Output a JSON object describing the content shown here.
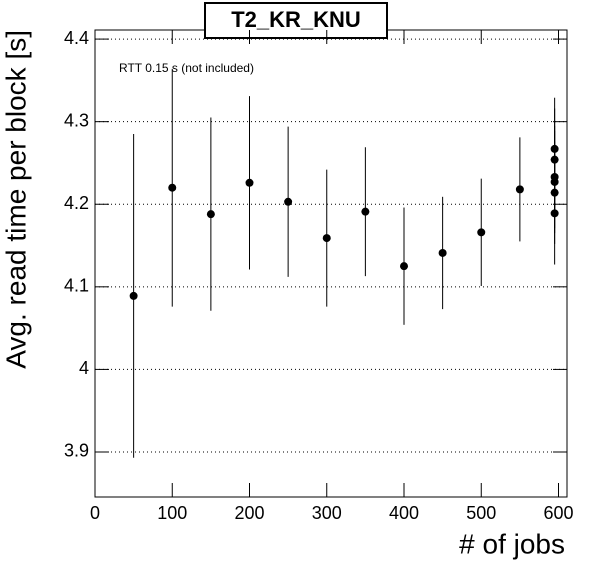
{
  "chart_data": {
    "type": "errorbar",
    "title": "T2_KR_KNU",
    "annotation": "RTT 0.15 s (not included)",
    "x_label": "# of jobs",
    "y_label": "Avg. read time per block [s]",
    "series": [
      {
        "color": "#000000",
        "x": [
          50,
          100,
          150,
          200,
          250,
          300,
          350,
          400,
          450,
          500,
          550,
          595,
          595,
          595,
          595,
          595,
          595
        ],
        "values": [
          4.089,
          4.22,
          4.188,
          4.226,
          4.203,
          4.159,
          4.191,
          4.125,
          4.141,
          4.166,
          4.218,
          4.267,
          4.254,
          4.233,
          4.227,
          4.214,
          4.189
        ],
        "errors": [
          0.196,
          0.144,
          0.117,
          0.105,
          0.091,
          0.083,
          0.078,
          0.071,
          0.068,
          0.065,
          0.063,
          0.062,
          0.062,
          0.062,
          0.062,
          0.062,
          0.062
        ]
      }
    ],
    "xlim": [
      0,
      611
    ],
    "xticks": [
      0,
      100,
      200,
      300,
      400,
      500,
      600
    ],
    "ylim": [
      3.8455,
      4.411
    ],
    "yticks": [
      3.9,
      4,
      4.1,
      4.2,
      4.3,
      4.4
    ],
    "grid": "y"
  }
}
